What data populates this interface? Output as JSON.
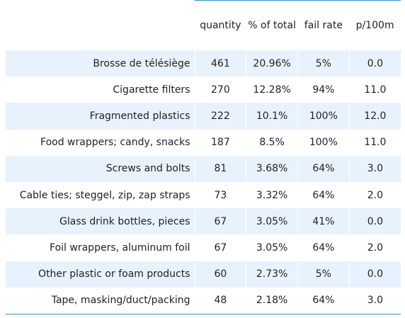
{
  "chart_data": {
    "type": "table",
    "columns": [
      "quantity",
      "% of total",
      "fail rate",
      "p/100m"
    ],
    "rows": [
      {
        "label": "Brosse de télésiège",
        "quantity": "461",
        "pct_total": "20.96%",
        "fail_rate": "5%",
        "p100m": "0.0"
      },
      {
        "label": "Cigarette filters",
        "quantity": "270",
        "pct_total": "12.28%",
        "fail_rate": "94%",
        "p100m": "11.0"
      },
      {
        "label": "Fragmented plastics",
        "quantity": "222",
        "pct_total": "10.1%",
        "fail_rate": "100%",
        "p100m": "12.0"
      },
      {
        "label": "Food wrappers; candy, snacks",
        "quantity": "187",
        "pct_total": "8.5%",
        "fail_rate": "100%",
        "p100m": "11.0"
      },
      {
        "label": "Screws and bolts",
        "quantity": "81",
        "pct_total": "3.68%",
        "fail_rate": "64%",
        "p100m": "3.0"
      },
      {
        "label": "Cable ties; steggel, zip, zap straps",
        "quantity": "73",
        "pct_total": "3.32%",
        "fail_rate": "64%",
        "p100m": "2.0"
      },
      {
        "label": "Glass drink bottles, pieces",
        "quantity": "67",
        "pct_total": "3.05%",
        "fail_rate": "41%",
        "p100m": "0.0"
      },
      {
        "label": "Foil wrappers, aluminum foil",
        "quantity": "67",
        "pct_total": "3.05%",
        "fail_rate": "64%",
        "p100m": "2.0"
      },
      {
        "label": "Other plastic or foam products",
        "quantity": "60",
        "pct_total": "2.73%",
        "fail_rate": "5%",
        "p100m": "0.0"
      },
      {
        "label": "Tape, masking/duct/packing",
        "quantity": "48",
        "pct_total": "2.18%",
        "fail_rate": "64%",
        "p100m": "3.0"
      }
    ],
    "colors": {
      "stripe": "#e8f2fd",
      "rule": "#3b8fc0",
      "text": "#222222"
    }
  }
}
